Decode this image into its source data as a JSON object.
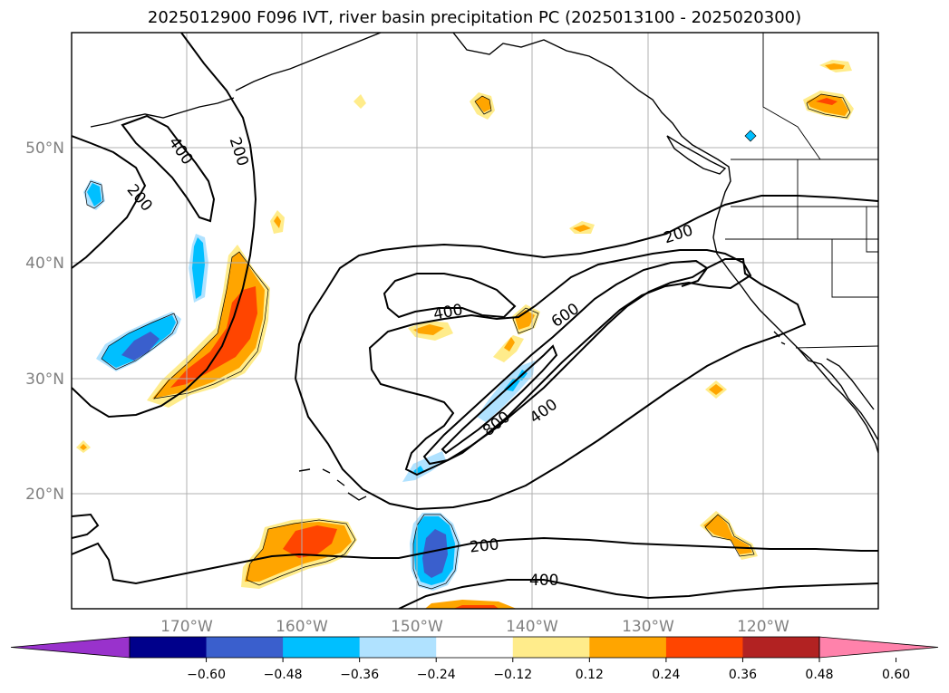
{
  "title": "2025012900 F096 IVT, river basin precipitation PC (2025013100 - 2025020300)",
  "map": {
    "lat_labels": [
      "50°N",
      "40°N",
      "30°N",
      "20°N"
    ],
    "lon_labels": [
      "170°W",
      "160°W",
      "150°W",
      "140°W",
      "130°W",
      "120°W"
    ],
    "contour_labels": [
      "200",
      "400",
      "200",
      "400",
      "600",
      "800",
      "400",
      "200",
      "200",
      "400"
    ]
  },
  "colorbar": {
    "ticks": [
      "−0.60",
      "−0.48",
      "−0.36",
      "−0.24",
      "−0.12",
      "0.12",
      "0.24",
      "0.36",
      "0.48",
      "0.60"
    ],
    "colors": [
      "#9932cc",
      "#00008b",
      "#3a5fcd",
      "#00bfff",
      "#b0e2ff",
      "#ffffff",
      "#ffec8b",
      "#ffa500",
      "#ff4500",
      "#b22222",
      "#ff82ab"
    ]
  }
}
